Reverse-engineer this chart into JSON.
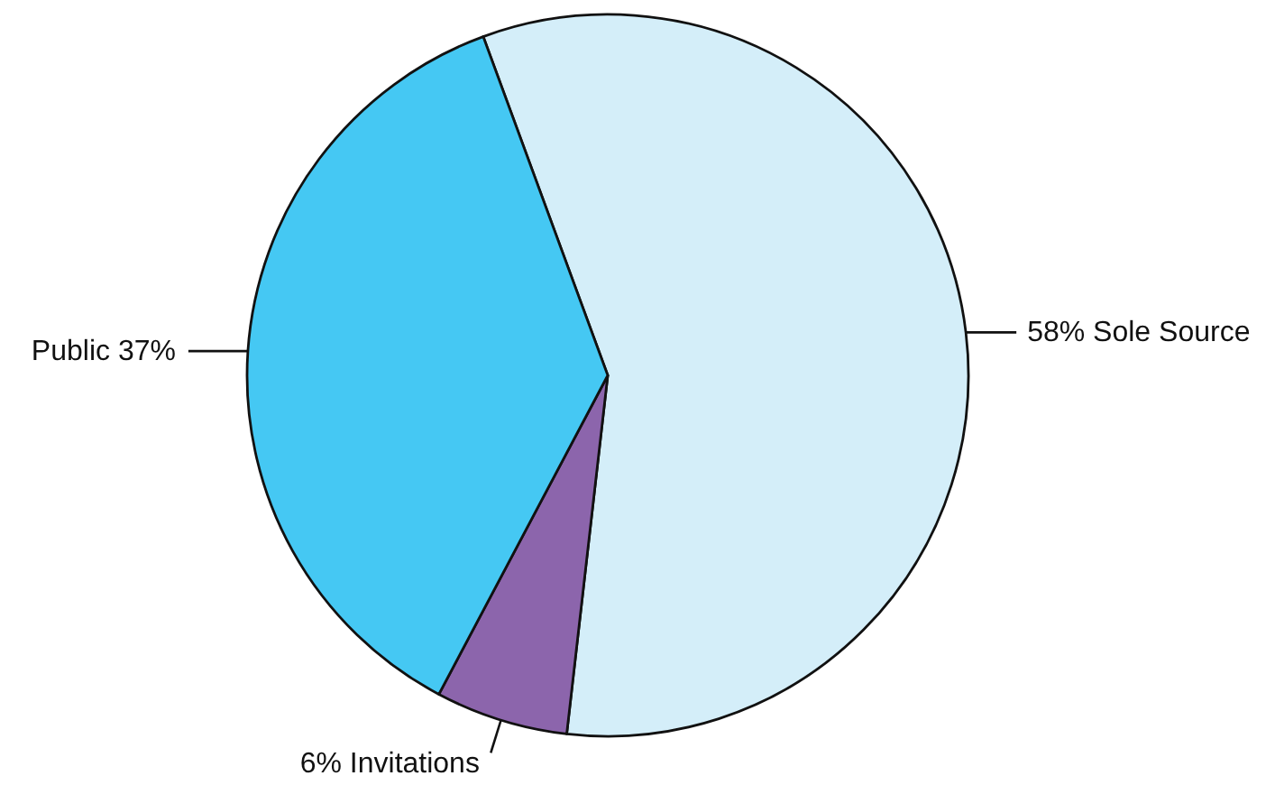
{
  "chart_data": {
    "type": "pie",
    "categories": [
      "Sole Source",
      "Invitations",
      "Public"
    ],
    "values": [
      58,
      6,
      37
    ],
    "value_labels": [
      "58%",
      "6%",
      "37%"
    ],
    "colors": [
      "#d4eef9",
      "#8c65ac",
      "#45c8f3"
    ]
  }
}
